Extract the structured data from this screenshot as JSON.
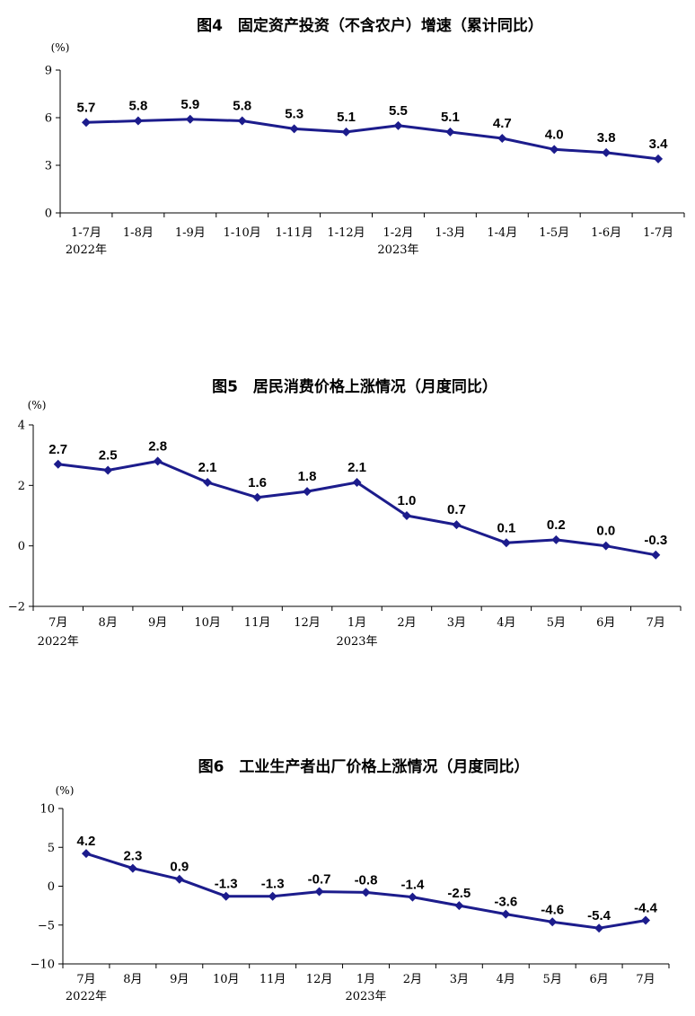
{
  "accent_color": "#1c1c8c",
  "chart_data": [
    {
      "type": "line",
      "title": "图4　固定资产投资（不含农户）增速（累计同比）",
      "unit": "(%)",
      "categories": [
        "1-7月",
        "1-8月",
        "1-9月",
        "1-10月",
        "1-11月",
        "1-12月",
        "1-2月",
        "1-3月",
        "1-4月",
        "1-5月",
        "1-6月",
        "1-7月"
      ],
      "year_labels": [
        {
          "index": 0,
          "text": "2022年"
        },
        {
          "index": 6,
          "text": "2023年"
        }
      ],
      "values": [
        5.7,
        5.8,
        5.9,
        5.8,
        5.3,
        5.1,
        5.5,
        5.1,
        4.7,
        4.0,
        3.8,
        3.4
      ],
      "value_labels": [
        "5.7",
        "5.8",
        "5.9",
        "5.8",
        "5.3",
        "5.1",
        "5.5",
        "5.1",
        "4.7",
        "4.0",
        "3.8",
        "3.4"
      ],
      "ylim": [
        0,
        9
      ],
      "yticks": [
        0,
        3,
        6,
        9
      ],
      "ytick_labels": [
        "0",
        "3",
        "6",
        "9"
      ],
      "grid": false,
      "legend": "none"
    },
    {
      "type": "line",
      "title": "图5　居民消费价格上涨情况（月度同比）",
      "unit": "(%)",
      "categories": [
        "7月",
        "8月",
        "9月",
        "10月",
        "11月",
        "12月",
        "1月",
        "2月",
        "3月",
        "4月",
        "5月",
        "6月",
        "7月"
      ],
      "year_labels": [
        {
          "index": 0,
          "text": "2022年"
        },
        {
          "index": 6,
          "text": "2023年"
        }
      ],
      "values": [
        2.7,
        2.5,
        2.8,
        2.1,
        1.6,
        1.8,
        2.1,
        1.0,
        0.7,
        0.1,
        0.2,
        0.0,
        -0.3
      ],
      "value_labels": [
        "2.7",
        "2.5",
        "2.8",
        "2.1",
        "1.6",
        "1.8",
        "2.1",
        "1.0",
        "0.7",
        "0.1",
        "0.2",
        "0.0",
        "-0.3"
      ],
      "ylim": [
        -2,
        4
      ],
      "yticks": [
        -2,
        0,
        2,
        4
      ],
      "ytick_labels": [
        "−2",
        "0",
        "2",
        "4"
      ],
      "grid": false,
      "legend": "none"
    },
    {
      "type": "line",
      "title": "图6　工业生产者出厂价格上涨情况（月度同比）",
      "unit": "(%)",
      "categories": [
        "7月",
        "8月",
        "9月",
        "10月",
        "11月",
        "12月",
        "1月",
        "2月",
        "3月",
        "4月",
        "5月",
        "6月",
        "7月"
      ],
      "year_labels": [
        {
          "index": 0,
          "text": "2022年"
        },
        {
          "index": 6,
          "text": "2023年"
        }
      ],
      "values": [
        4.2,
        2.3,
        0.9,
        -1.3,
        -1.3,
        -0.7,
        -0.8,
        -1.4,
        -2.5,
        -3.6,
        -4.6,
        -5.4,
        -4.4
      ],
      "value_labels": [
        "4.2",
        "2.3",
        "0.9",
        "-1.3",
        "-1.3",
        "-0.7",
        "-0.8",
        "-1.4",
        "-2.5",
        "-3.6",
        "-4.6",
        "-5.4",
        "-4.4"
      ],
      "ylim": [
        -10,
        10
      ],
      "yticks": [
        -10,
        -5,
        0,
        5,
        10
      ],
      "ytick_labels": [
        "−10",
        "−5",
        "0",
        "5",
        "10"
      ],
      "grid": false,
      "legend": "none"
    }
  ]
}
